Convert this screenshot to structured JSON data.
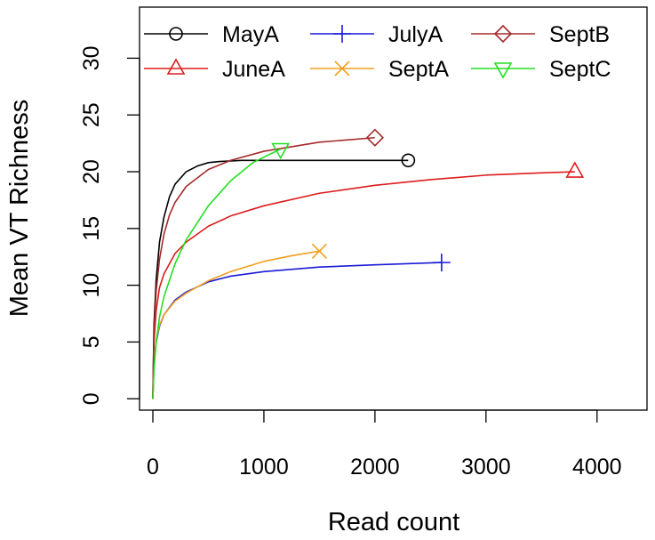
{
  "chart_data": {
    "type": "line",
    "xlabel": "Read count",
    "ylabel": "Mean VT Richness",
    "xlim": [
      -120,
      4450
    ],
    "ylim": [
      -1.0,
      34.5
    ],
    "x_ticks": [
      0,
      1000,
      2000,
      3000,
      4000
    ],
    "y_ticks": [
      0,
      5,
      10,
      15,
      20,
      25,
      30
    ],
    "x_tick_labels": [
      "0",
      "1000",
      "2000",
      "3000",
      "4000"
    ],
    "y_tick_labels": [
      "0",
      "5",
      "10",
      "15",
      "20",
      "25",
      "30"
    ],
    "grid": false,
    "legend_position": "top",
    "series": [
      {
        "name": "MayA",
        "color": "#000000",
        "marker": "circle",
        "x": [
          0,
          10,
          30,
          60,
          100,
          150,
          200,
          300,
          400,
          500,
          600,
          800,
          1000,
          1500,
          2000,
          2300
        ],
        "y": [
          0,
          6.5,
          10.5,
          13.8,
          16.0,
          17.8,
          18.9,
          20.0,
          20.5,
          20.8,
          20.9,
          21.0,
          21.0,
          21.0,
          21.0,
          21.0
        ]
      },
      {
        "name": "JuneA",
        "color": "#dd1c1c",
        "marker": "triangle-up",
        "x": [
          0,
          10,
          30,
          60,
          100,
          200,
          300,
          500,
          700,
          1000,
          1500,
          2000,
          2500,
          3000,
          3500,
          3800
        ],
        "y": [
          0,
          5.0,
          7.8,
          9.8,
          11.0,
          12.8,
          13.8,
          15.2,
          16.1,
          17.0,
          18.1,
          18.8,
          19.3,
          19.7,
          19.9,
          20.0
        ]
      },
      {
        "name": "JulyA",
        "color": "#1a1ad6",
        "marker": "plus",
        "x": [
          0,
          10,
          30,
          60,
          100,
          200,
          300,
          500,
          700,
          1000,
          1500,
          2000,
          2600
        ],
        "y": [
          0,
          3.0,
          5.0,
          6.4,
          7.4,
          8.7,
          9.4,
          10.3,
          10.8,
          11.2,
          11.6,
          11.8,
          12.0
        ]
      },
      {
        "name": "SeptA",
        "color": "#f0a020",
        "marker": "cross",
        "x": [
          0,
          10,
          30,
          60,
          100,
          200,
          300,
          500,
          700,
          1000,
          1250,
          1500
        ],
        "y": [
          0,
          3.2,
          5.2,
          6.5,
          7.4,
          8.6,
          9.3,
          10.4,
          11.2,
          12.1,
          12.6,
          13.0
        ]
      },
      {
        "name": "SeptB",
        "color": "#a52a2a",
        "marker": "diamond",
        "x": [
          0,
          10,
          30,
          60,
          100,
          150,
          200,
          300,
          500,
          700,
          1000,
          1500,
          2000
        ],
        "y": [
          0,
          6.0,
          9.5,
          12.3,
          14.5,
          16.2,
          17.3,
          18.7,
          20.2,
          21.0,
          21.8,
          22.6,
          23.0
        ]
      },
      {
        "name": "SeptC",
        "color": "#22e022",
        "marker": "triangle-down",
        "x": [
          0,
          10,
          30,
          60,
          100,
          200,
          300,
          500,
          700,
          900,
          1150
        ],
        "y": [
          0,
          2.5,
          5.0,
          7.2,
          9.0,
          11.9,
          14.0,
          17.0,
          19.2,
          20.8,
          22.0
        ]
      }
    ]
  }
}
